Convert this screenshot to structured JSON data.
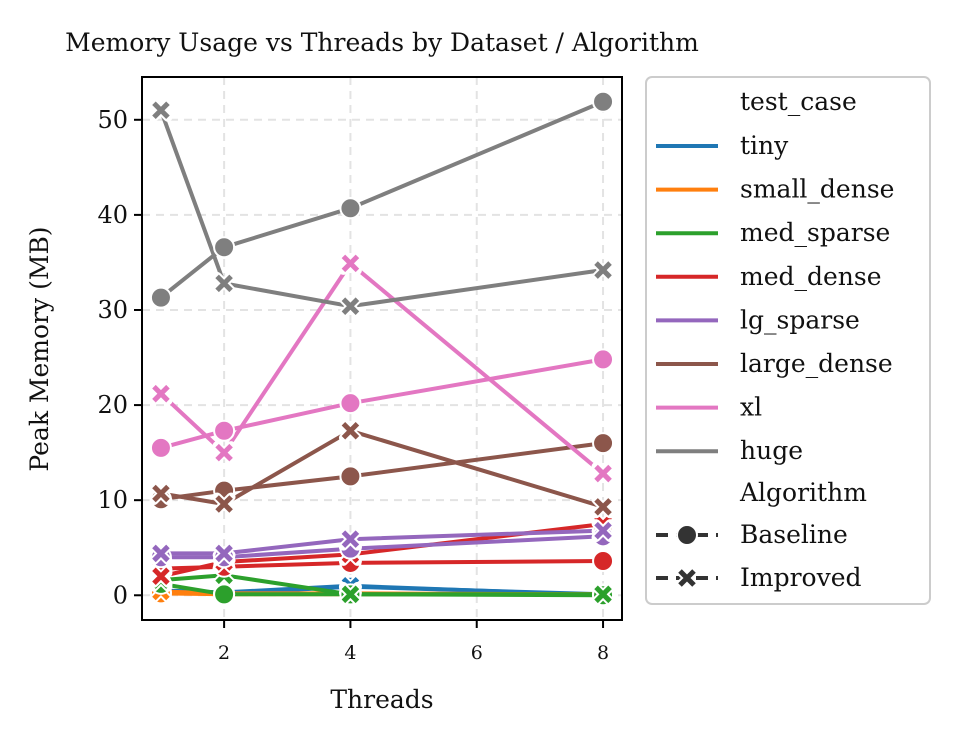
{
  "chart_data": {
    "type": "line",
    "title": "Memory Usage vs Threads by Dataset / Algorithm",
    "xlabel": "Threads",
    "ylabel": "Peak Memory (MB)",
    "xlim": [
      0.7,
      8.3
    ],
    "ylim": [
      -2.6,
      54.5
    ],
    "xticks": [
      2,
      4,
      6,
      8
    ],
    "yticks": [
      0,
      10,
      20,
      30,
      40,
      50
    ],
    "grid": true,
    "legend_position": "outside right",
    "legend": {
      "hue_title": "test_case",
      "style_title": "Algorithm"
    },
    "x": [
      1,
      2,
      4,
      8
    ],
    "series": [
      {
        "test_case": "tiny",
        "algorithm": "Baseline",
        "color": "#1f77b4",
        "values": [
          0.3,
          0.2,
          0.9,
          0.1
        ]
      },
      {
        "test_case": "tiny",
        "algorithm": "Improved",
        "color": "#1f77b4",
        "values": [
          0.5,
          0.3,
          1.0,
          0.0
        ]
      },
      {
        "test_case": "small_dense",
        "algorithm": "Baseline",
        "color": "#ff7f0e",
        "values": [
          0.2,
          0.1,
          0.1,
          0.1
        ]
      },
      {
        "test_case": "small_dense",
        "algorithm": "Improved",
        "color": "#ff7f0e",
        "values": [
          0.4,
          0.2,
          0.2,
          0.1
        ]
      },
      {
        "test_case": "med_sparse",
        "algorithm": "Baseline",
        "color": "#2ca02c",
        "values": [
          1.2,
          0.1,
          0.1,
          0.0
        ]
      },
      {
        "test_case": "med_sparse",
        "algorithm": "Improved",
        "color": "#2ca02c",
        "values": [
          1.6,
          2.1,
          0.1,
          0.1
        ]
      },
      {
        "test_case": "med_dense",
        "algorithm": "Baseline",
        "color": "#d62728",
        "values": [
          2.8,
          3.0,
          3.4,
          3.6
        ]
      },
      {
        "test_case": "med_dense",
        "algorithm": "Improved",
        "color": "#d62728",
        "values": [
          2.0,
          3.5,
          4.3,
          7.5
        ]
      },
      {
        "test_case": "lg_sparse",
        "algorithm": "Baseline",
        "color": "#9467bd",
        "values": [
          4.0,
          4.0,
          4.9,
          6.2
        ]
      },
      {
        "test_case": "lg_sparse",
        "algorithm": "Improved",
        "color": "#9467bd",
        "values": [
          4.4,
          4.4,
          5.9,
          6.8
        ]
      },
      {
        "test_case": "large_dense",
        "algorithm": "Baseline",
        "color": "#8c564b",
        "values": [
          10.1,
          11.0,
          12.5,
          16.0
        ]
      },
      {
        "test_case": "large_dense",
        "algorithm": "Improved",
        "color": "#8c564b",
        "values": [
          10.7,
          9.6,
          17.3,
          9.3
        ]
      },
      {
        "test_case": "xl",
        "algorithm": "Baseline",
        "color": "#e377c2",
        "values": [
          15.5,
          17.3,
          20.2,
          24.8
        ]
      },
      {
        "test_case": "xl",
        "algorithm": "Improved",
        "color": "#e377c2",
        "values": [
          21.2,
          15.0,
          34.9,
          12.8
        ]
      },
      {
        "test_case": "huge",
        "algorithm": "Baseline",
        "color": "#7f7f7f",
        "values": [
          31.3,
          36.6,
          40.7,
          51.9
        ]
      },
      {
        "test_case": "huge",
        "algorithm": "Improved",
        "color": "#7f7f7f",
        "values": [
          51.0,
          32.8,
          30.4,
          34.2
        ]
      }
    ],
    "legend_items": [
      {
        "label": "tiny",
        "color": "#1f77b4"
      },
      {
        "label": "small_dense",
        "color": "#ff7f0e"
      },
      {
        "label": "med_sparse",
        "color": "#2ca02c"
      },
      {
        "label": "med_dense",
        "color": "#d62728"
      },
      {
        "label": "lg_sparse",
        "color": "#9467bd"
      },
      {
        "label": "large_dense",
        "color": "#8c564b"
      },
      {
        "label": "xl",
        "color": "#e377c2"
      },
      {
        "label": "huge",
        "color": "#7f7f7f"
      }
    ],
    "style_items": [
      {
        "label": "Baseline",
        "marker": "circle"
      },
      {
        "label": "Improved",
        "marker": "x"
      }
    ]
  }
}
